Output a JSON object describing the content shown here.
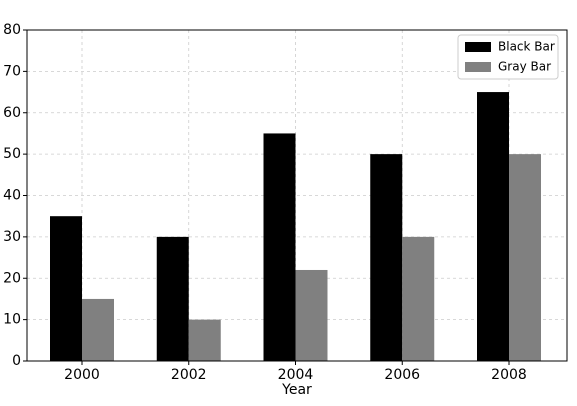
{
  "chart_data": {
    "type": "bar",
    "x_label": "Year",
    "categories": [
      "2000",
      "2002",
      "2004",
      "2006",
      "2008"
    ],
    "series": [
      {
        "name": "Black Bar",
        "color": "#000000",
        "values": [
          35,
          30,
          55,
          50,
          65
        ]
      },
      {
        "name": "Gray Bar",
        "color": "#808080",
        "values": [
          15,
          10,
          22,
          30,
          50
        ]
      }
    ],
    "ylim": [
      0,
      80
    ],
    "yticks": [
      0,
      10,
      20,
      30,
      40,
      50,
      60,
      70,
      80
    ],
    "grid": true,
    "legend": "upper-right"
  }
}
